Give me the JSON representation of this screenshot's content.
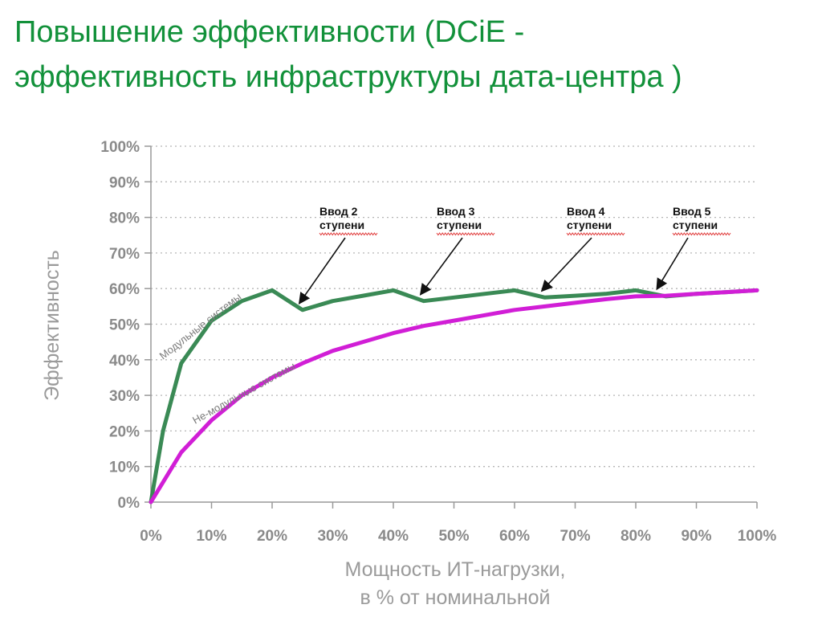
{
  "slide": {
    "title_line1": "Повышение эффективности (DCiE -",
    "title_line2": "эффективность инфраструктуры дата-центра )"
  },
  "chart_data": {
    "type": "line",
    "ylabel": "Эффективность",
    "xlabel_line1": "Мощность ИТ-нагрузки,",
    "xlabel_line2": "в % от номинальной",
    "xlim": [
      0,
      100
    ],
    "ylim": [
      0,
      100
    ],
    "grid": "horizontal-dotted",
    "x_ticks": [
      "0%",
      "10%",
      "20%",
      "30%",
      "40%",
      "50%",
      "60%",
      "70%",
      "80%",
      "90%",
      "100%"
    ],
    "y_ticks": [
      "0%",
      "10%",
      "20%",
      "30%",
      "40%",
      "50%",
      "60%",
      "70%",
      "80%",
      "90%",
      "100%"
    ],
    "series": [
      {
        "name": "Модульные системы",
        "color": "#3a8a55",
        "x": [
          0,
          2,
          5,
          10,
          15,
          20,
          25,
          30,
          35,
          40,
          45,
          50,
          55,
          60,
          65,
          70,
          75,
          80,
          85,
          90,
          95,
          100
        ],
        "y": [
          0,
          20,
          39,
          51,
          56.5,
          59.5,
          54,
          56.5,
          58,
          59.5,
          56.5,
          57.5,
          58.5,
          59.5,
          57.5,
          58,
          58.5,
          59.5,
          57.8,
          58.5,
          59,
          59.5
        ]
      },
      {
        "name": "Не-модульные системы",
        "color": "#d11ed6",
        "x": [
          0,
          5,
          10,
          15,
          20,
          25,
          30,
          35,
          40,
          45,
          50,
          55,
          60,
          65,
          70,
          75,
          80,
          85,
          90,
          95,
          100
        ],
        "y": [
          0,
          14,
          23,
          30,
          35,
          39,
          42.5,
          45,
          47.5,
          49.5,
          51,
          52.5,
          54,
          55,
          56,
          57,
          57.8,
          58,
          58.5,
          59,
          59.5
        ]
      }
    ],
    "annotations": [
      {
        "line1": "Ввод 2",
        "line2": "ступени",
        "point_x": 25,
        "point_y": 54
      },
      {
        "line1": "Ввод 3",
        "line2": "ступени",
        "point_x": 45,
        "point_y": 56.5
      },
      {
        "line1": "Ввод 4",
        "line2": "ступени",
        "point_x": 65,
        "point_y": 57.5
      },
      {
        "line1": "Ввод 5",
        "line2": "ступени",
        "point_x": 84,
        "point_y": 58
      }
    ]
  }
}
